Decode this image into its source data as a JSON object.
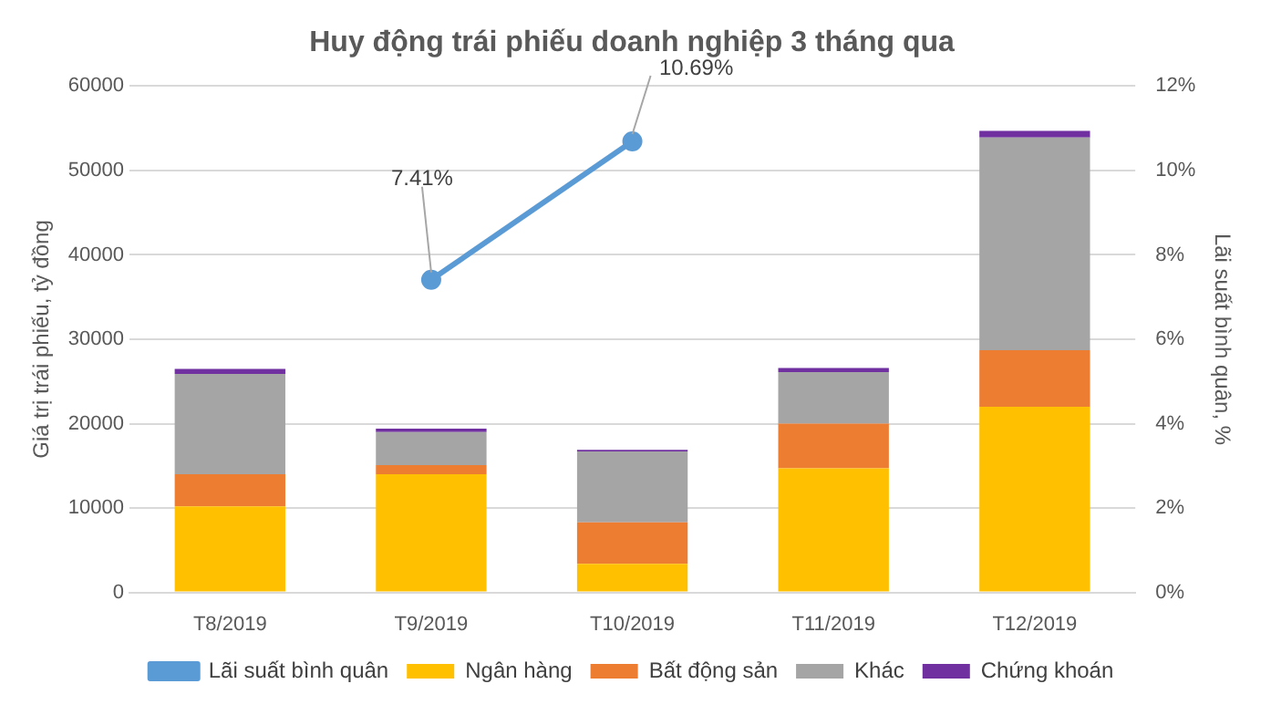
{
  "chart_data": {
    "type": "bar",
    "title": "Huy động trái phiếu doanh nghiệp 3 tháng qua",
    "ylabel": "Giá trị trái phiếu, tỷ đồng",
    "y2label": "Lãi suất bình quân, %",
    "categories": [
      "T8/2019",
      "T9/2019",
      "T10/2019",
      "T11/2019",
      "T12/2019"
    ],
    "stacked": true,
    "series": [
      {
        "name": "Ngân hàng",
        "color": "#ffc000",
        "values": [
          10200,
          14000,
          3400,
          14700,
          22000
        ]
      },
      {
        "name": "Bất động sản",
        "color": "#ed7d31",
        "values": [
          3800,
          1100,
          4900,
          5300,
          6700
        ]
      },
      {
        "name": "Khác",
        "color": "#a5a5a5",
        "values": [
          11900,
          3900,
          8400,
          6100,
          25200
        ]
      },
      {
        "name": "Chứng khoán",
        "color": "#7030a0",
        "values": [
          600,
          400,
          200,
          500,
          800
        ]
      },
      {
        "name": "Lãi suất bình quân",
        "type": "line",
        "axis": "y2",
        "color": "#5b9bd5",
        "marker": "circle",
        "values": [
          null,
          7.41,
          10.69,
          null,
          null
        ],
        "value_labels": [
          null,
          "7.41%",
          "10.69%",
          null,
          null
        ]
      }
    ],
    "ylim": [
      0,
      60000
    ],
    "yticks": [
      0,
      10000,
      20000,
      30000,
      40000,
      50000,
      60000
    ],
    "y2lim": [
      0,
      12
    ],
    "y2ticks": [
      {
        "value": 0,
        "label": "0%"
      },
      {
        "value": 2,
        "label": "2%"
      },
      {
        "value": 4,
        "label": "4%"
      },
      {
        "value": 6,
        "label": "6%"
      },
      {
        "value": 8,
        "label": "8%"
      },
      {
        "value": 10,
        "label": "10%"
      },
      {
        "value": 12,
        "label": "12%"
      }
    ],
    "grid": "y",
    "legend": "bottom"
  }
}
